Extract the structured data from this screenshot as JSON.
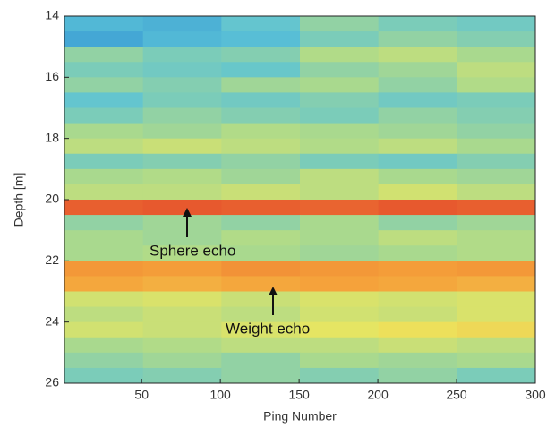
{
  "chart_data": {
    "type": "heatmap",
    "xlabel": "Ping Number",
    "ylabel": "Depth [m]",
    "xlim": [
      1,
      300
    ],
    "ylim": [
      26,
      14
    ],
    "xticks": [
      50,
      100,
      150,
      200,
      250,
      300
    ],
    "yticks": [
      14,
      16,
      18,
      20,
      22,
      24,
      26
    ],
    "zlim": [
      0,
      1
    ],
    "colormap": [
      "#1b3c9e",
      "#2c8ad4",
      "#5cc3d6",
      "#a9d98e",
      "#ece65e",
      "#f5a13a",
      "#e2422a"
    ],
    "z": [
      [
        0.3,
        0.28,
        0.35,
        0.45,
        0.4,
        0.38
      ],
      [
        0.25,
        0.3,
        0.32,
        0.4,
        0.45,
        0.42
      ],
      [
        0.45,
        0.4,
        0.42,
        0.52,
        0.55,
        0.5
      ],
      [
        0.4,
        0.38,
        0.36,
        0.45,
        0.48,
        0.55
      ],
      [
        0.45,
        0.42,
        0.48,
        0.5,
        0.45,
        0.52
      ],
      [
        0.35,
        0.4,
        0.38,
        0.42,
        0.38,
        0.4
      ],
      [
        0.4,
        0.45,
        0.42,
        0.4,
        0.45,
        0.42
      ],
      [
        0.5,
        0.48,
        0.52,
        0.5,
        0.48,
        0.45
      ],
      [
        0.55,
        0.58,
        0.55,
        0.52,
        0.55,
        0.5
      ],
      [
        0.4,
        0.42,
        0.45,
        0.4,
        0.38,
        0.42
      ],
      [
        0.5,
        0.52,
        0.48,
        0.55,
        0.5,
        0.48
      ],
      [
        0.55,
        0.55,
        0.58,
        0.55,
        0.6,
        0.55
      ],
      [
        0.95,
        0.96,
        0.95,
        0.94,
        0.96,
        0.95
      ],
      [
        0.45,
        0.48,
        0.45,
        0.5,
        0.45,
        0.48
      ],
      [
        0.5,
        0.48,
        0.52,
        0.5,
        0.55,
        0.52
      ],
      [
        0.5,
        0.52,
        0.5,
        0.48,
        0.5,
        0.52
      ],
      [
        0.85,
        0.84,
        0.86,
        0.85,
        0.84,
        0.85
      ],
      [
        0.82,
        0.8,
        0.82,
        0.83,
        0.82,
        0.8
      ],
      [
        0.6,
        0.62,
        0.58,
        0.62,
        0.6,
        0.62
      ],
      [
        0.55,
        0.58,
        0.55,
        0.6,
        0.58,
        0.62
      ],
      [
        0.6,
        0.58,
        0.62,
        0.65,
        0.68,
        0.7
      ],
      [
        0.5,
        0.52,
        0.55,
        0.55,
        0.58,
        0.55
      ],
      [
        0.45,
        0.48,
        0.45,
        0.5,
        0.48,
        0.5
      ],
      [
        0.4,
        0.42,
        0.45,
        0.42,
        0.45,
        0.4
      ]
    ],
    "annotations": [
      "Sphere echo",
      "Weight echo"
    ]
  }
}
